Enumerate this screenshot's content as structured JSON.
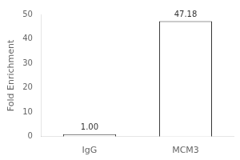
{
  "chart_data": {
    "type": "bar",
    "categories": [
      "IgG",
      "MCM3"
    ],
    "values": [
      1.0,
      47.18
    ],
    "value_labels": [
      "1.00",
      "47.18"
    ],
    "data_labels": true,
    "color": "#ffffff",
    "ylabel": "Fold Enrichment",
    "ylim": [
      0,
      50
    ],
    "yticks": [
      0,
      10,
      20,
      30,
      40,
      50
    ],
    "grid": false
  }
}
